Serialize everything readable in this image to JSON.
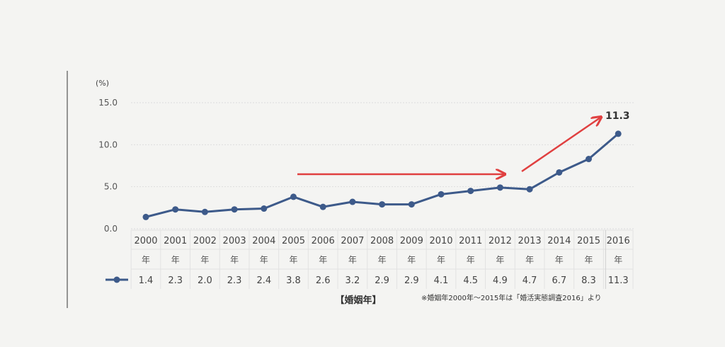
{
  "chart_data": {
    "type": "line",
    "y_unit": "(%)",
    "ylim": [
      0,
      15
    ],
    "y_ticks": [
      "0.0",
      "5.0",
      "10.0",
      "15.0"
    ],
    "categories": [
      "2000",
      "2001",
      "2002",
      "2003",
      "2004",
      "2005",
      "2006",
      "2007",
      "2008",
      "2009",
      "2010",
      "2011",
      "2012",
      "2013",
      "2014",
      "2015",
      "2016"
    ],
    "year_suffix": "年",
    "series": [
      {
        "name": "",
        "values": [
          1.4,
          2.3,
          2.0,
          2.3,
          2.4,
          3.8,
          2.6,
          3.2,
          2.9,
          2.9,
          4.1,
          4.5,
          4.9,
          4.7,
          6.7,
          8.3,
          11.3
        ],
        "value_labels": [
          "1.4",
          "2.3",
          "2.0",
          "2.3",
          "2.4",
          "3.8",
          "2.6",
          "3.2",
          "2.9",
          "2.9",
          "4.1",
          "4.5",
          "4.9",
          "4.7",
          "6.7",
          "8.3",
          "11.3"
        ]
      }
    ],
    "callout": "11.3",
    "xlabel": "【婚姻年】",
    "note": "※婚姻年2000年～2015年は「婚活実態調査2016」より",
    "colors": {
      "line": "#3d5a8a",
      "arrow": "#e04040",
      "grid": "#dddddd"
    },
    "grid": true
  }
}
